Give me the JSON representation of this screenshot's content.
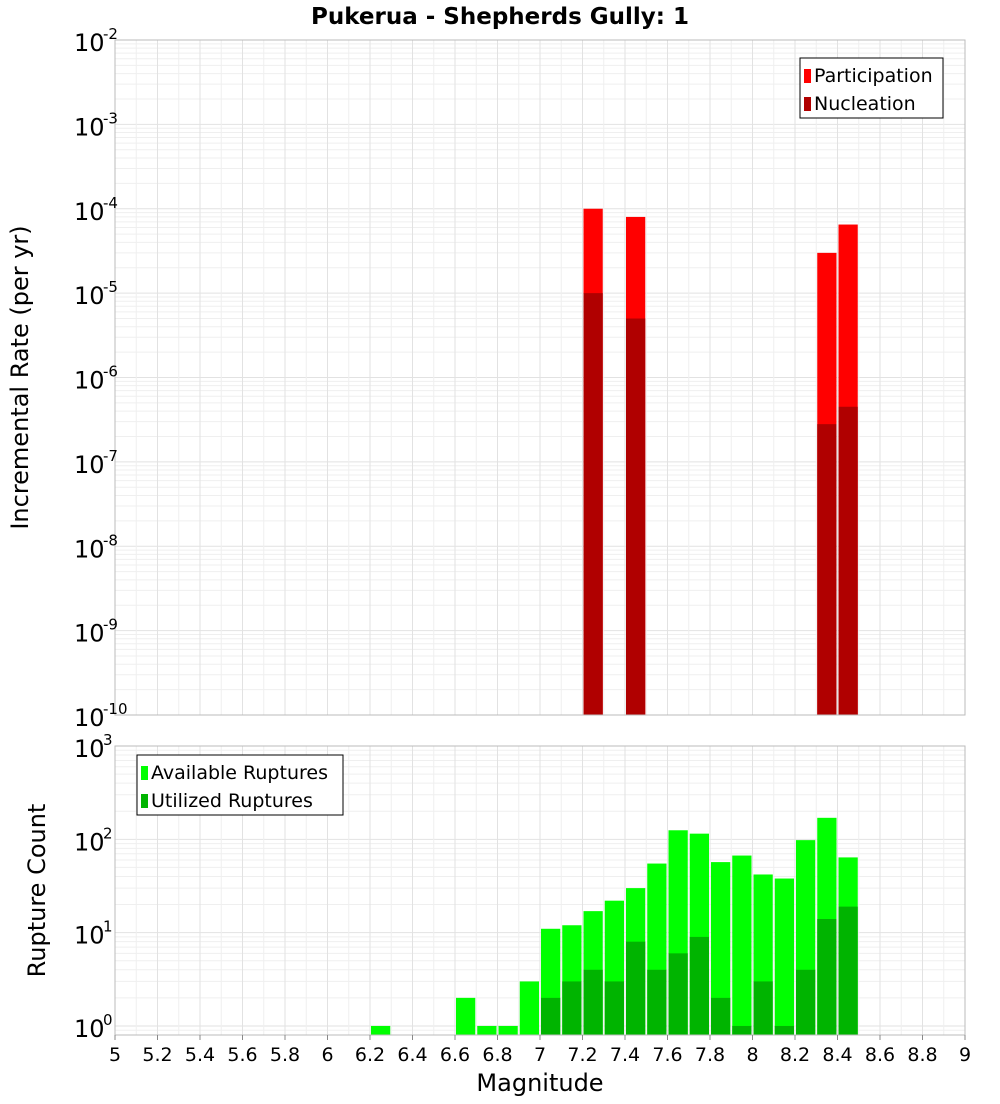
{
  "chart_data": [
    {
      "type": "bar",
      "title": "Pukerua - Shepherds Gully: 1",
      "ylabel": "Incremental Rate (per yr)",
      "xlabel": "",
      "yscale": "log",
      "ylim": [
        1e-10,
        0.01
      ],
      "xlim": [
        5,
        9
      ],
      "bin_width": 0.1,
      "y_ticks": [
        {
          "base": "10",
          "exp": "-10",
          "value": 1e-10
        },
        {
          "base": "10",
          "exp": "-9",
          "value": 1e-09
        },
        {
          "base": "10",
          "exp": "-8",
          "value": 1e-08
        },
        {
          "base": "10",
          "exp": "-7",
          "value": 1e-07
        },
        {
          "base": "10",
          "exp": "-6",
          "value": 1e-06
        },
        {
          "base": "10",
          "exp": "-5",
          "value": 1e-05
        },
        {
          "base": "10",
          "exp": "-4",
          "value": 0.0001
        },
        {
          "base": "10",
          "exp": "-3",
          "value": 0.001
        },
        {
          "base": "10",
          "exp": "-2",
          "value": 0.01
        }
      ],
      "legend_position": "top-right",
      "series": [
        {
          "name": "Participation",
          "color": "#ff0000",
          "x": [
            7.25,
            7.45,
            8.35,
            8.45
          ],
          "values": [
            0.0001,
            8e-05,
            3e-05,
            6.5e-05
          ]
        },
        {
          "name": "Nucleation",
          "color": "#b00000",
          "x": [
            7.25,
            7.45,
            8.35,
            8.45
          ],
          "values": [
            1e-05,
            5e-06,
            2.8e-07,
            4.5e-07
          ]
        }
      ]
    },
    {
      "type": "bar",
      "title": "",
      "ylabel": "Rupture Count",
      "xlabel": "Magnitude",
      "yscale": "log",
      "ylim": [
        0.8,
        1000
      ],
      "xlim": [
        5,
        9
      ],
      "bin_width": 0.1,
      "y_ticks": [
        {
          "base": "10",
          "exp": "0",
          "value": 1
        },
        {
          "base": "10",
          "exp": "1",
          "value": 10
        },
        {
          "base": "10",
          "exp": "2",
          "value": 100
        },
        {
          "base": "10",
          "exp": "3",
          "value": 1000
        }
      ],
      "x_ticks": [
        "5",
        "5.2",
        "5.4",
        "5.6",
        "5.8",
        "6",
        "6.2",
        "6.4",
        "6.6",
        "6.8",
        "7",
        "7.2",
        "7.4",
        "7.6",
        "7.8",
        "8",
        "8.2",
        "8.4",
        "8.6",
        "8.8",
        "9"
      ],
      "legend_position": "top-left",
      "series": [
        {
          "name": "Available Ruptures",
          "color": "#00ff00",
          "x": [
            6.25,
            6.65,
            6.75,
            6.85,
            6.95,
            7.05,
            7.15,
            7.25,
            7.35,
            7.45,
            7.55,
            7.65,
            7.75,
            7.85,
            7.95,
            8.05,
            8.15,
            8.25,
            8.35,
            8.45
          ],
          "values": [
            1,
            2,
            1,
            1,
            3,
            11,
            12,
            17,
            22,
            30,
            55,
            125,
            115,
            57,
            67,
            42,
            38,
            98,
            170,
            64
          ]
        },
        {
          "name": "Utilized Ruptures",
          "color": "#00b400",
          "x": [
            7.05,
            7.15,
            7.25,
            7.35,
            7.45,
            7.55,
            7.65,
            7.75,
            7.85,
            7.95,
            8.05,
            8.15,
            8.25,
            8.35,
            8.45
          ],
          "values": [
            2,
            3,
            4,
            3,
            8,
            4,
            6,
            9,
            2,
            1,
            3,
            1,
            4,
            14,
            19
          ]
        }
      ]
    }
  ]
}
